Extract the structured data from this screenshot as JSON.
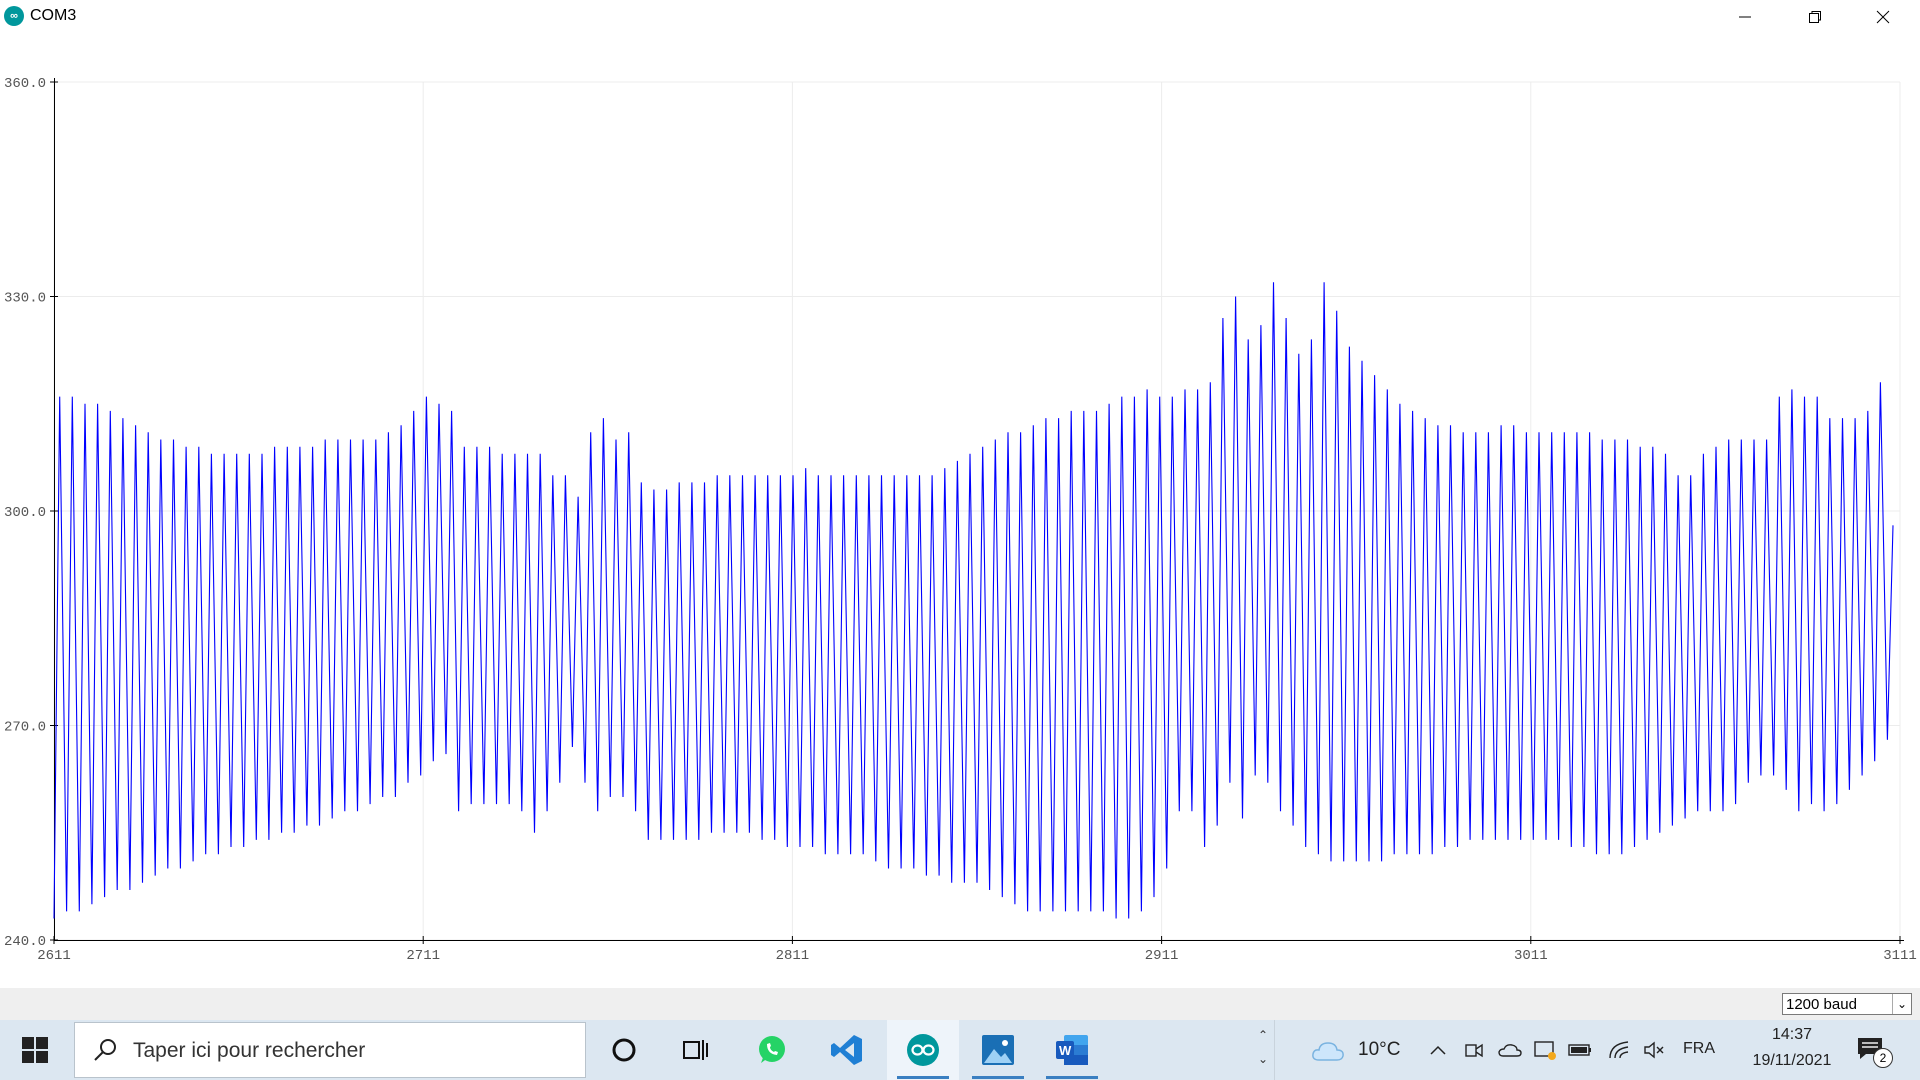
{
  "window": {
    "title": "COM3",
    "app_icon": "arduino-icon",
    "icon_glyph": "∞"
  },
  "chart_data": {
    "type": "line",
    "title": "",
    "xlabel": "",
    "ylabel": "",
    "ylim": [
      240,
      360
    ],
    "y_ticks": [
      "240.0",
      "270.0",
      "300.0",
      "330.0",
      "360.0"
    ],
    "x_ticks": [
      "2611",
      "2711",
      "2811",
      "2911",
      "3011",
      "3111"
    ],
    "x_tick_values": [
      2611,
      2711,
      2811,
      2911,
      3011,
      3111
    ],
    "xlim": [
      2611,
      3111
    ],
    "grid": true,
    "series": [
      {
        "name": "",
        "color": "#0000ff",
        "peaks": [
          316,
          316,
          315,
          315,
          314,
          313,
          312,
          311,
          310,
          310,
          309,
          309,
          308,
          308,
          308,
          308,
          308,
          309,
          309,
          309,
          309,
          310,
          310,
          310,
          310,
          310,
          311,
          312,
          314,
          316,
          315,
          314,
          309,
          309,
          309,
          308,
          308,
          308,
          308,
          305,
          305,
          302,
          311,
          313,
          310,
          311,
          304,
          303,
          303,
          304,
          304,
          304,
          305,
          305,
          305,
          305,
          305,
          305,
          305,
          306,
          305,
          305,
          305,
          305,
          305,
          305,
          305,
          305,
          305,
          305,
          306,
          307,
          308,
          309,
          310,
          311,
          311,
          312,
          313,
          313,
          314,
          314,
          314,
          315,
          316,
          316,
          317,
          316,
          316,
          317,
          317,
          318,
          327,
          330,
          324,
          326,
          332,
          327,
          322,
          324,
          332,
          328,
          323,
          321,
          319,
          317,
          315,
          314,
          313,
          312,
          312,
          311,
          311,
          311,
          312,
          312,
          311,
          311,
          311,
          311,
          311,
          311,
          310,
          310,
          310,
          309,
          309,
          308,
          305,
          305,
          308,
          309,
          310,
          310,
          310,
          310,
          316,
          317,
          316,
          316,
          313,
          313,
          313,
          314,
          318,
          298
        ],
        "troughs": [
          243,
          244,
          244,
          245,
          246,
          247,
          247,
          248,
          249,
          250,
          250,
          251,
          252,
          252,
          253,
          253,
          254,
          254,
          255,
          255,
          256,
          256,
          257,
          258,
          258,
          259,
          260,
          260,
          262,
          263,
          265,
          266,
          258,
          259,
          259,
          259,
          259,
          258,
          255,
          258,
          262,
          267,
          262,
          258,
          260,
          260,
          258,
          254,
          254,
          254,
          254,
          254,
          255,
          255,
          255,
          255,
          254,
          254,
          253,
          253,
          253,
          252,
          252,
          252,
          252,
          251,
          250,
          250,
          250,
          249,
          249,
          248,
          248,
          248,
          247,
          246,
          245,
          244,
          244,
          244,
          244,
          244,
          244,
          244,
          243,
          243,
          244,
          246,
          250,
          258,
          258,
          253,
          256,
          262,
          257,
          263,
          262,
          258,
          256,
          253,
          252,
          251,
          251,
          251,
          251,
          251,
          252,
          252,
          252,
          252,
          253,
          253,
          254,
          254,
          254,
          254,
          254,
          254,
          254,
          254,
          253,
          253,
          252,
          252,
          252,
          253,
          254,
          255,
          256,
          257,
          258,
          258,
          258,
          259,
          262,
          263,
          263,
          261,
          258,
          259,
          258,
          259,
          261,
          263,
          265,
          268
        ]
      }
    ]
  },
  "bottom": {
    "baud": "1200 baud"
  },
  "taskbar": {
    "search_placeholder": "Taper ici pour rechercher",
    "weather_temp": "10°C",
    "language": "FRA",
    "time": "14:37",
    "date": "19/11/2021",
    "notification_count": "2",
    "apps": [
      "cortana-icon",
      "task-view-icon",
      "whatsapp-icon",
      "vscode-icon",
      "arduino-icon",
      "photos-icon",
      "word-icon"
    ]
  }
}
